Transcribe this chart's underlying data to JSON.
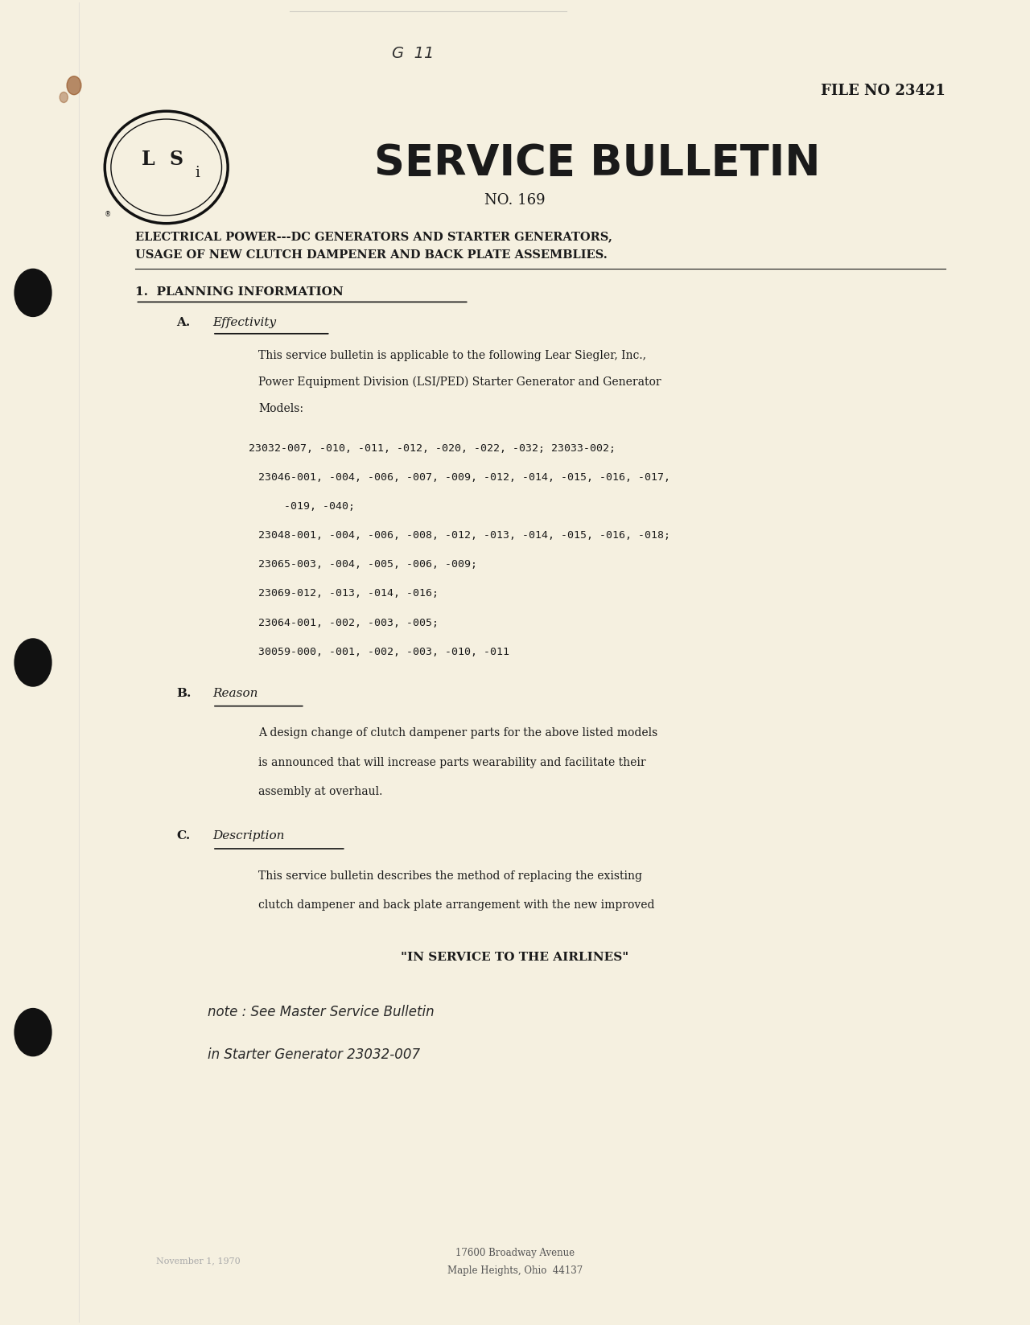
{
  "bg_color": "#f5f0e0",
  "page_width": 12.8,
  "page_height": 16.47,
  "handwritten_g11": "G  11",
  "file_no": "FILE NO 23421",
  "bulletin_title": "SERVICE BULLETIN",
  "bulletin_no": "NO. 169",
  "subject_line1": "ELECTRICAL POWER---DC GENERATORS AND STARTER GENERATORS,",
  "subject_line2": "USAGE OF NEW CLUTCH DAMPENER AND BACK PLATE ASSEMBLIES.",
  "section1_title": "1.  PLANNING INFORMATION",
  "section_a_label": "A.",
  "section_a_title": "Effectivity",
  "effectivity_para": "This service bulletin is applicable to the following Lear Siegler, Inc.,\nPower Equipment Division (LSI/PED) Starter Generator and Generator\nModels:",
  "model_lines": [
    "23032-007, -010, -011, -012, -020, -022, -032; 23033-002;",
    "23046-001, -004, -006, -007, -009, -012, -014, -015, -016, -017,",
    "    -019, -040;",
    "23048-001, -004, -006, -008, -012, -013, -014, -015, -016, -018;",
    "23065-003, -004, -005, -006, -009;",
    "23069-012, -013, -014, -016;",
    "23064-001, -002, -003, -005;",
    "30059-000, -001, -002, -003, -010, -011"
  ],
  "section_b_label": "B.",
  "section_b_title": "Reason",
  "reason_para": "A design change of clutch dampener parts for the above listed models\nis announced that will increase parts wearability and facilitate their\nassembly at overhaul.",
  "section_c_label": "C.",
  "section_c_title": "Description",
  "description_para": "This service bulletin describes the method of replacing the existing\nclutch dampener and back plate arrangement with the new improved",
  "tagline": "\"IN SERVICE TO THE AIRLINES\"",
  "handwritten_note1": "note : See Master Service Bulletin",
  "handwritten_note2": "in Starter Generator 23032-007",
  "footer_left_faint": "November 1, 1970",
  "footer_center": "17600 Broadway Avenue",
  "footer_city": "Maple Heights, Ohio  44137",
  "text_color": "#1a1a1a",
  "faint_color": "#888888"
}
